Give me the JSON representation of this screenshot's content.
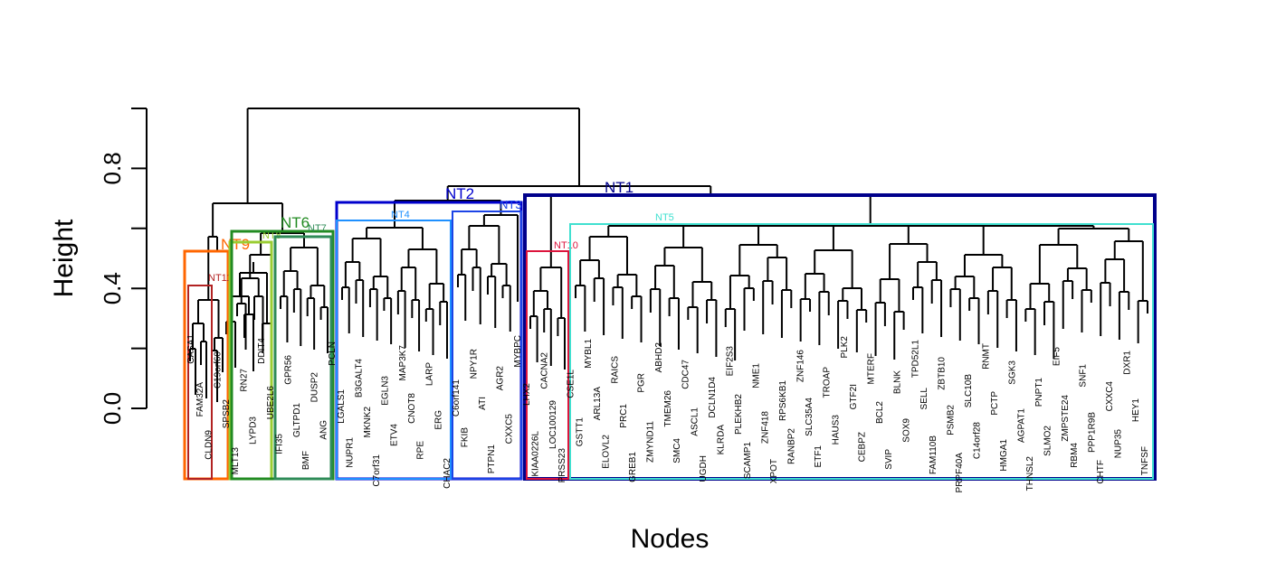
{
  "chart_data": {
    "type": "dendrogram",
    "xlabel": "Nodes",
    "ylabel": "Height",
    "ylim": [
      0.0,
      1.0
    ],
    "yticks": [
      "0.0",
      "0.4",
      "0.8"
    ],
    "root_height": 1.0,
    "clusters": [
      {
        "name": "NT1",
        "color": "#00008b",
        "top_height": 0.71,
        "label_size": "large"
      },
      {
        "name": "NT2",
        "color": "#0000cd",
        "top_height": 0.69,
        "label_size": "large"
      },
      {
        "name": "NT3",
        "color": "#1c44e6",
        "top_height": 0.69,
        "label_size": "medium"
      },
      {
        "name": "NT4",
        "color": "#1e90ff",
        "top_height": 0.62,
        "label_size": "small"
      },
      {
        "name": "NT5",
        "color": "#40e0d0",
        "top_height": 0.61,
        "label_size": "small"
      },
      {
        "name": "NT6",
        "color": "#228b22",
        "top_height": 0.59,
        "label_size": "large"
      },
      {
        "name": "NT7",
        "color": "#2e8b57",
        "top_height": 0.59,
        "label_size": "small"
      },
      {
        "name": "NT8",
        "color": "#9acd32",
        "top_height": 0.57,
        "label_size": "small"
      },
      {
        "name": "NT9",
        "color": "#ff6600",
        "top_height": 0.53,
        "label_size": "large"
      },
      {
        "name": "NT10",
        "color": "#dc143c",
        "top_height": 0.53,
        "label_size": "small"
      },
      {
        "name": "NT11",
        "color": "#b22222",
        "top_height": 0.41,
        "label_size": "small"
      }
    ],
    "leaf_labels": [
      "CASA1",
      "FAM32A",
      "CLDN9",
      "C19orf60",
      "SPSB2",
      "MLT13",
      "RN27",
      "LYPD3",
      "DDIT4",
      "UBE2L6",
      "IFI35",
      "GPR56",
      "GLTPD1",
      "BMF",
      "DUSP2",
      "ANG",
      "PCLN",
      "LGALS1",
      "NUPR1",
      "B3GALT4",
      "MKNK2",
      "C7orf31",
      "EGLN3",
      "ETV4",
      "MAP3K7",
      "CNOT8",
      "RPE",
      "LARP",
      "ERG",
      "CHAC2",
      "C6orf141",
      "FKIB",
      "NPY1R",
      "ATI",
      "PTPN1",
      "AGR2",
      "CXXC5",
      "MYBPC",
      "LHX2",
      "KIAA0226L",
      "CACNA2",
      "LOC100129",
      "PRSS23",
      "CSE1L",
      "GSTT1",
      "MYBL1",
      "ARL13A",
      "ELOVL2",
      "RAICS",
      "PRC1",
      "GREB1",
      "PGR",
      "ZMYND11",
      "ABHD2",
      "TMEM26",
      "SMC4",
      "CDC47",
      "ASCL1",
      "UGDH",
      "DCLN1D4",
      "KLRDA",
      "EIF2S3",
      "PLEKHB2",
      "SCAMP1",
      "NME1",
      "ZNF418",
      "XPOT",
      "RPS6KB1",
      "RANBP2",
      "ZNF146",
      "SLC35A4",
      "ETF1",
      "TROAP",
      "HAUS3",
      "PLK2",
      "GTF2I",
      "CEBPZ",
      "MTERF",
      "BCL2",
      "SVIP",
      "BLNK",
      "SOX9",
      "TPD52L1",
      "SELL",
      "FAM110B",
      "ZBTB10",
      "PSMB2",
      "PRPF40A",
      "SLC10B",
      "C14orf28",
      "RNMT",
      "PCTP",
      "HMGA1",
      "SGK3",
      "AGPAT1",
      "THNSL2",
      "PNPT1",
      "SLMO2",
      "EIF5",
      "ZMPSTE24",
      "RBM4",
      "SNF1",
      "PPP1R9B",
      "CHTF",
      "CXXC4",
      "NUP35",
      "DXR1",
      "HEY1",
      "TNFSF"
    ]
  }
}
